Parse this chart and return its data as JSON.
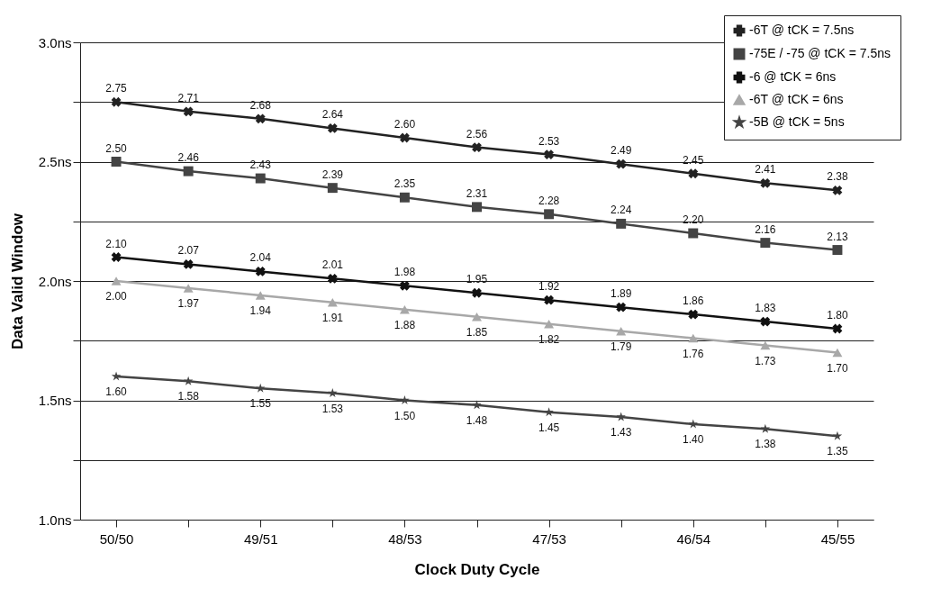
{
  "chart_data": {
    "type": "line",
    "xlabel": "Clock Duty Cycle",
    "ylabel": "Data Valid Window",
    "categories": [
      "50/50",
      null,
      "49/51",
      null,
      "48/53",
      null,
      "47/53",
      null,
      "46/54",
      null,
      "45/55"
    ],
    "series": [
      {
        "name": "-6T @ tCK = 7.5ns",
        "color": "#222222",
        "marker": "cross",
        "values": [
          2.75,
          2.71,
          2.68,
          2.64,
          2.6,
          2.56,
          2.53,
          2.49,
          2.45,
          2.41,
          2.38
        ],
        "value_labels": [
          "2.75",
          "2.71",
          "2.68",
          "2.64",
          "2.60",
          "2.56",
          "2.53",
          "2.49",
          "2.45",
          "2.41",
          "2.38"
        ]
      },
      {
        "name": "-75E / -75 @ tCK = 7.5ns",
        "color": "#444444",
        "marker": "square",
        "values": [
          2.5,
          2.46,
          2.43,
          2.39,
          2.35,
          2.31,
          2.28,
          2.24,
          2.2,
          2.16,
          2.13
        ],
        "value_labels": [
          "2.50",
          "2.46",
          "2.43",
          "2.39",
          "2.35",
          "2.31",
          "2.28",
          "2.24",
          "2.20",
          "2.16",
          "2.13"
        ]
      },
      {
        "name": "-6 @ tCK = 6ns",
        "color": "#111111",
        "marker": "cross",
        "values": [
          2.1,
          2.07,
          2.04,
          2.01,
          1.98,
          1.95,
          1.92,
          1.89,
          1.86,
          1.83,
          1.8
        ],
        "value_labels": [
          "2.10",
          "2.07",
          "2.04",
          "2.01",
          "1.98",
          "1.95",
          "1.92",
          "1.89",
          "1.86",
          "1.83",
          "1.80"
        ]
      },
      {
        "name": "-6T @ tCK = 6ns",
        "color": "#a8a8a8",
        "marker": "triangle",
        "values": [
          2.0,
          1.97,
          1.94,
          1.91,
          1.88,
          1.85,
          1.82,
          1.79,
          1.76,
          1.73,
          1.7
        ],
        "value_labels": [
          "2.00",
          "1.97",
          "1.94",
          "1.91",
          "1.88",
          "1.85",
          "1.82",
          "1.79",
          "1.76",
          "1.73",
          "1.70"
        ]
      },
      {
        "name": "-5B @ tCK = 5ns",
        "color": "#444444",
        "marker": "star",
        "values": [
          1.6,
          1.58,
          1.55,
          1.53,
          1.5,
          1.48,
          1.45,
          1.43,
          1.4,
          1.38,
          1.35
        ],
        "value_labels": [
          "1.60",
          "1.58",
          "1.55",
          "1.53",
          "1.50",
          "1.48",
          "1.45",
          "1.43",
          "1.40",
          "1.38",
          "1.35"
        ]
      }
    ],
    "ylim": [
      1.0,
      3.0
    ],
    "yticks": [
      {
        "value": 1.0,
        "label": "1.0ns"
      },
      {
        "value": 1.25,
        "label": null
      },
      {
        "value": 1.5,
        "label": "1.5ns"
      },
      {
        "value": 1.75,
        "label": null
      },
      {
        "value": 2.0,
        "label": "2.0ns"
      },
      {
        "value": 2.25,
        "label": null
      },
      {
        "value": 2.5,
        "label": "2.5ns"
      },
      {
        "value": 2.75,
        "label": null
      },
      {
        "value": 3.0,
        "label": "3.0ns"
      }
    ],
    "grid": "y",
    "legend": "top right"
  }
}
